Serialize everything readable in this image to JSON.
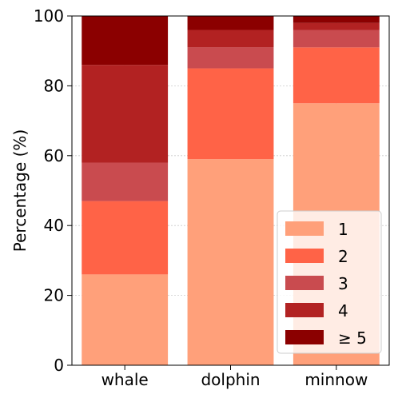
{
  "chart_data": {
    "type": "bar",
    "stacked": true,
    "categories": [
      "whale",
      "dolphin",
      "minnow"
    ],
    "series": [
      {
        "name": "1",
        "color": "#FFA07A",
        "values": [
          26,
          59,
          75
        ]
      },
      {
        "name": "2",
        "color": "#FF6347",
        "values": [
          21,
          26,
          16
        ]
      },
      {
        "name": "3",
        "color": "#C94B4F",
        "values": [
          11,
          6,
          5
        ]
      },
      {
        "name": "4",
        "color": "#B22222",
        "values": [
          28,
          5,
          2
        ]
      },
      {
        "name": "≥ 5",
        "color": "#8B0000",
        "values": [
          14,
          4,
          2
        ]
      }
    ],
    "ylabel": "Percentage (%)",
    "xlabel": "",
    "ylim": [
      0,
      100
    ],
    "yticks": [
      "0",
      "20",
      "40",
      "60",
      "80",
      "100"
    ],
    "grid": true,
    "legend_position": "lower-right"
  }
}
